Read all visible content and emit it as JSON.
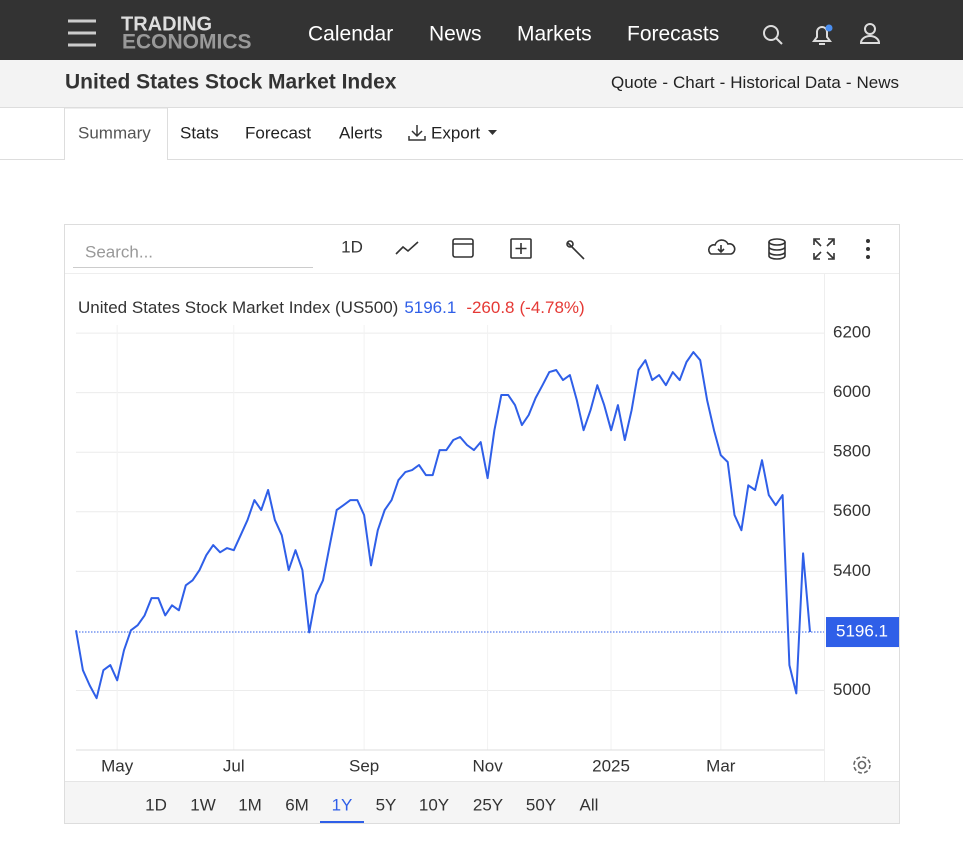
{
  "nav": {
    "logo_top": "TRADING",
    "logo_bottom": "ECONOMICS",
    "links": [
      "Calendar",
      "News",
      "Markets",
      "Forecasts"
    ]
  },
  "title_bar": {
    "title": "United States Stock Market Index",
    "links": [
      "Quote",
      "Chart",
      "Historical Data",
      "News"
    ],
    "separator": "-"
  },
  "tabs": [
    "Summary",
    "Stats",
    "Forecast",
    "Alerts",
    "Export"
  ],
  "toolbar": {
    "search_placeholder": "Search...",
    "interval": "1D"
  },
  "ranges": {
    "options": [
      "1D",
      "1W",
      "1M",
      "6M",
      "1Y",
      "5Y",
      "10Y",
      "25Y",
      "50Y",
      "All"
    ],
    "active": "1Y"
  },
  "chart_data": {
    "type": "line",
    "title": "United States Stock Market Index (US500)",
    "change": -260.8,
    "change_percent": "(-4.78%)",
    "categories": [
      null,
      null,
      null,
      null,
      null,
      null,
      "May",
      null,
      null,
      null,
      null,
      null,
      null,
      null,
      null,
      null,
      null,
      null,
      null,
      null,
      null,
      null,
      null,
      "Jul",
      null,
      null,
      null,
      null,
      null,
      null,
      null,
      null,
      null,
      null,
      null,
      null,
      null,
      null,
      null,
      null,
      null,
      null,
      "Sep",
      null,
      null,
      null,
      null,
      null,
      null,
      null,
      null,
      null,
      null,
      null,
      null,
      null,
      null,
      null,
      null,
      null,
      "Nov",
      null,
      null,
      null,
      null,
      null,
      null,
      null,
      null,
      null,
      null,
      null,
      null,
      null,
      null,
      null,
      null,
      null,
      "2025",
      null,
      null,
      null,
      null,
      null,
      null,
      null,
      null,
      null,
      null,
      null,
      null,
      null,
      null,
      null,
      "Mar",
      null,
      null,
      null,
      null,
      null,
      null,
      null,
      null,
      null,
      null,
      null,
      null,
      null
    ],
    "series": [
      {
        "name": "US500",
        "color": "#2f5fe8",
        "values": [
          5202,
          5068,
          5017,
          4974,
          5068,
          5085,
          5034,
          5135,
          5202,
          5219,
          5252,
          5310,
          5310,
          5252,
          5286,
          5269,
          5353,
          5370,
          5404,
          5454,
          5488,
          5464,
          5478,
          5471,
          5521,
          5572,
          5639,
          5606,
          5673,
          5572,
          5521,
          5404,
          5471,
          5404,
          5195,
          5320,
          5370,
          5488,
          5606,
          5622,
          5639,
          5639,
          5589,
          5420,
          5538,
          5606,
          5639,
          5706,
          5733,
          5740,
          5757,
          5723,
          5723,
          5807,
          5807,
          5841,
          5851,
          5824,
          5807,
          5834,
          5713,
          5874,
          5992,
          5992,
          5958,
          5891,
          5925,
          5982,
          6025,
          6069,
          6076,
          6042,
          6059,
          5975,
          5874,
          5941,
          6025,
          5958,
          5874,
          5958,
          5841,
          5941,
          6076,
          6109,
          6042,
          6059,
          6025,
          6069,
          6042,
          6103,
          6136,
          6109,
          5975,
          5874,
          5790,
          5767,
          5589,
          5538,
          5689,
          5673,
          5773,
          5656,
          5622,
          5656,
          5085,
          4990,
          5460,
          5196.1
        ]
      }
    ],
    "ylim": [
      4800,
      6395
    ],
    "yticks": [
      5000,
      5400,
      5600,
      5800,
      6000,
      6200
    ],
    "grid": true
  }
}
